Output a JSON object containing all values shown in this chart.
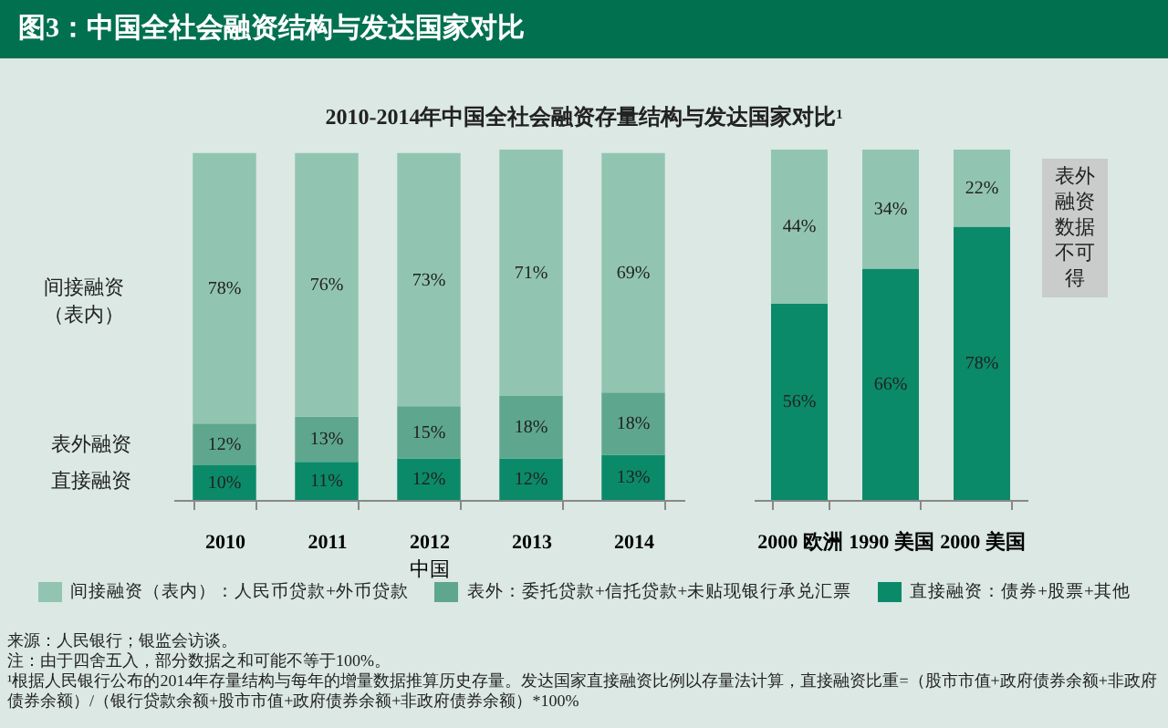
{
  "chart_data": [
    {
      "type": "bar",
      "title": "图3：中国全社会融资结构与发达国家对比",
      "subtitle": "2010-2014年中国全社会融资存量结构与发达国家对比¹",
      "xlabel": "中国",
      "stacked": true,
      "legend": "bottom",
      "categories": [
        "2010",
        "2011",
        "2012",
        "2013",
        "2014"
      ],
      "series": [
        {
          "name": "直接融资：债券+股票+其他",
          "color": "#0b8a6a",
          "values": [
            10,
            11,
            12,
            12,
            13
          ],
          "value_labels": [
            "10%",
            "11%",
            "12%",
            "12%",
            "13%"
          ]
        },
        {
          "name": "表外：委托贷款+信托贷款+未贴现银行承兑汇票",
          "color": "#5ea78e",
          "values": [
            12,
            13,
            15,
            18,
            18
          ],
          "value_labels": [
            "12%",
            "13%",
            "15%",
            "18%",
            "18%"
          ]
        },
        {
          "name": "间接融资（表内）：人民币贷款+外币贷款",
          "color": "#91c5b2",
          "values": [
            78,
            76,
            73,
            71,
            69
          ],
          "value_labels": [
            "78%",
            "76%",
            "73%",
            "71%",
            "69%"
          ]
        }
      ],
      "annotations": [
        "直接融资",
        "表外融资",
        "间接融资（表内）",
        "来源：人民银行；银监会访谈。",
        "注：由于四舍五入，部分数据之和可能不等于100%。",
        "¹根据人民银行公布的2014年存量结构与每年的增量数据推算历史存量。发达国家直接融资比例以存量法计算，直接融资比重=（股市市值+政府债券余额+非政府债券余额）/（银行贷款余额+股市市值+政府债券余额+非政府债券余额）*100%"
      ]
    },
    {
      "type": "bar",
      "stacked": true,
      "categories": [
        "2000 欧洲",
        "1990 美国",
        "2000 美国"
      ],
      "series": [
        {
          "color": "#0b8a6a",
          "values": [
            56,
            66,
            78
          ],
          "value_labels": [
            "56%",
            "66%",
            "78%"
          ]
        },
        {
          "color": "#91c5b2",
          "values": [
            44,
            34,
            22
          ],
          "value_labels": [
            "44%",
            "34%",
            "22%"
          ]
        }
      ],
      "annotations": [
        "表外融资数据不可得"
      ]
    }
  ]
}
